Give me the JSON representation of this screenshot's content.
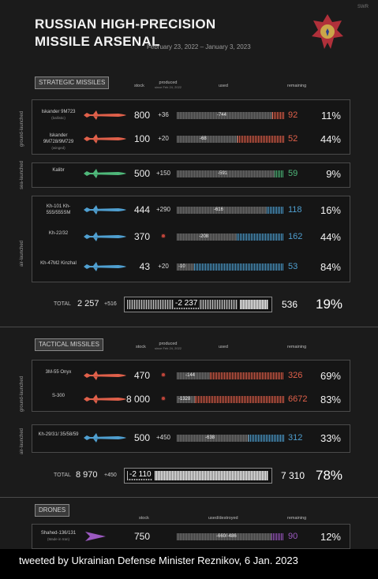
{
  "header": {
    "title_line1": "RUSSIAN HIGH-PRECISION",
    "title_line2": "MISSILE ARSENAL",
    "date_range": "February 23, 2022 – January 3, 2023",
    "corner_mark": "SWR"
  },
  "columns": {
    "stock": "stock",
    "produced": "produced",
    "produced_note": "since Feb 24, 2022",
    "used": "used",
    "used_destroyed": "used/destroyed",
    "remaining": "remaining"
  },
  "strategic": {
    "label": "STRATEGIC MISSILES",
    "groups": {
      "ground": "ground-launched",
      "sea": "sea-launched",
      "air": "air-launched"
    },
    "rows": [
      {
        "name": "Iskander 9M723",
        "note": "(ballistic)",
        "stock": "800",
        "produced": "+36",
        "used": "-744",
        "remaining": "92",
        "percent": "11%",
        "color": "#e0604a"
      },
      {
        "name": "Iskander 9M728/9M729",
        "note": "(winged)",
        "stock": "100",
        "produced": "+20",
        "used": "-68",
        "remaining": "52",
        "percent": "44%",
        "color": "#e0604a"
      },
      {
        "name": "Kalibr",
        "note": "",
        "stock": "500",
        "produced": "+150",
        "used": "-591",
        "remaining": "59",
        "percent": "9%",
        "color": "#4fb87a"
      },
      {
        "name": "Kh-101 Kh-555/555SM",
        "note": "",
        "stock": "444",
        "produced": "+290",
        "used": "-616",
        "remaining": "118",
        "percent": "16%",
        "color": "#4f9fd0"
      },
      {
        "name": "Kh-22/32",
        "note": "",
        "stock": "370",
        "produced": "",
        "used": "-208",
        "remaining": "162",
        "percent": "44%",
        "color": "#4f9fd0"
      },
      {
        "name": "Kh-47M2 Kinzhal",
        "note": "",
        "stock": "43",
        "produced": "+20",
        "used": "-10",
        "remaining": "53",
        "percent": "84%",
        "color": "#4f9fd0"
      }
    ],
    "total": {
      "label": "TOTAL",
      "stock": "2 257",
      "produced": "+516",
      "used": "-2 237",
      "remaining": "536",
      "percent": "19%"
    }
  },
  "tactical": {
    "label": "TACTICAL MISSILES",
    "groups": {
      "ground": "ground-launched",
      "air": "air-launched"
    },
    "rows": [
      {
        "name": "3M-55 Onyx",
        "note": "",
        "stock": "470",
        "produced": "",
        "used": "-144",
        "remaining": "326",
        "percent": "69%",
        "color": "#e0604a"
      },
      {
        "name": "S-300",
        "note": "",
        "stock": "8 000",
        "produced": "",
        "used": "-1328",
        "remaining": "6672",
        "percent": "83%",
        "color": "#e0604a"
      },
      {
        "name": "Kh-29/31/ 35/58/59",
        "note": "",
        "stock": "500",
        "produced": "+450",
        "used": "-638",
        "remaining": "312",
        "percent": "33%",
        "color": "#4f9fd0"
      }
    ],
    "total": {
      "label": "TOTAL",
      "stock": "8 970",
      "produced": "+450",
      "used": "-2 110",
      "remaining": "7 310",
      "percent": "78%"
    }
  },
  "drones": {
    "label": "DRONES",
    "rows": [
      {
        "name": "Shahed-136/131",
        "note": "(Made in Iran)",
        "stock": "750",
        "used": "-660/-486",
        "remaining": "90",
        "percent": "12%",
        "color": "#9b59c0"
      }
    ]
  },
  "caption": "tweeted by Ukrainian Defense Minister Reznikov, 6 Jan. 2023"
}
